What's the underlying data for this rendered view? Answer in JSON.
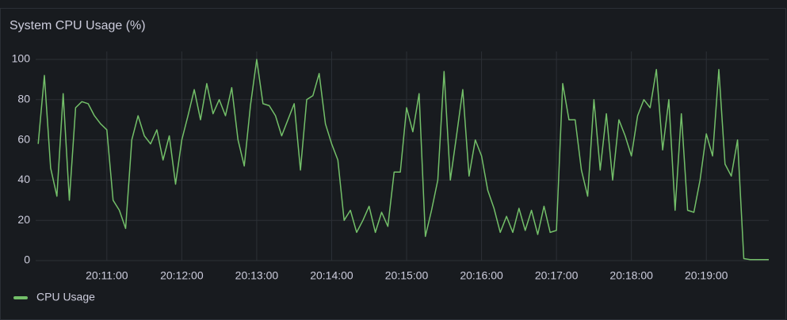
{
  "chart_data": {
    "type": "line",
    "title": "System CPU Usage (%)",
    "x": [
      "20:10:05",
      "20:10:10",
      "20:10:15",
      "20:10:20",
      "20:10:25",
      "20:10:30",
      "20:10:35",
      "20:10:40",
      "20:10:45",
      "20:10:50",
      "20:10:55",
      "20:11:00",
      "20:11:05",
      "20:11:10",
      "20:11:15",
      "20:11:20",
      "20:11:25",
      "20:11:30",
      "20:11:35",
      "20:11:40",
      "20:11:45",
      "20:11:50",
      "20:11:55",
      "20:12:00",
      "20:12:05",
      "20:12:10",
      "20:12:15",
      "20:12:20",
      "20:12:25",
      "20:12:30",
      "20:12:35",
      "20:12:40",
      "20:12:45",
      "20:12:50",
      "20:12:55",
      "20:13:00",
      "20:13:05",
      "20:13:10",
      "20:13:15",
      "20:13:20",
      "20:13:25",
      "20:13:30",
      "20:13:35",
      "20:13:40",
      "20:13:45",
      "20:13:50",
      "20:13:55",
      "20:14:00",
      "20:14:05",
      "20:14:10",
      "20:14:15",
      "20:14:20",
      "20:14:25",
      "20:14:30",
      "20:14:35",
      "20:14:40",
      "20:14:45",
      "20:14:50",
      "20:14:55",
      "20:15:00",
      "20:15:05",
      "20:15:10",
      "20:15:15",
      "20:15:20",
      "20:15:25",
      "20:15:30",
      "20:15:35",
      "20:15:40",
      "20:15:45",
      "20:15:50",
      "20:15:55",
      "20:16:00",
      "20:16:05",
      "20:16:10",
      "20:16:15",
      "20:16:20",
      "20:16:25",
      "20:16:30",
      "20:16:35",
      "20:16:40",
      "20:16:45",
      "20:16:50",
      "20:16:55",
      "20:17:00",
      "20:17:05",
      "20:17:10",
      "20:17:15",
      "20:17:20",
      "20:17:25",
      "20:17:30",
      "20:17:35",
      "20:17:40",
      "20:17:45",
      "20:17:50",
      "20:17:55",
      "20:18:00",
      "20:18:05",
      "20:18:10",
      "20:18:15",
      "20:18:20",
      "20:18:25",
      "20:18:30",
      "20:18:35",
      "20:18:40",
      "20:18:45",
      "20:18:50",
      "20:18:55",
      "20:19:00",
      "20:19:05",
      "20:19:10",
      "20:19:15",
      "20:19:20",
      "20:19:25",
      "20:19:30",
      "20:19:35",
      "20:19:40",
      "20:19:45",
      "20:19:50"
    ],
    "series": [
      {
        "name": "CPU Usage",
        "color": "#73bf69",
        "values": [
          58,
          92,
          46,
          32,
          83,
          30,
          76,
          79,
          78,
          72,
          68,
          65,
          30,
          25,
          16,
          60,
          72,
          62,
          58,
          65,
          50,
          62,
          38,
          60,
          72,
          85,
          70,
          88,
          73,
          80,
          72,
          86,
          60,
          47,
          77,
          100,
          78,
          77,
          72,
          62,
          70,
          78,
          45,
          80,
          82,
          93,
          68,
          58,
          50,
          20,
          25,
          14,
          20,
          27,
          14,
          24,
          17,
          44,
          44,
          76,
          64,
          83,
          12,
          25,
          40,
          94,
          40,
          62,
          85,
          42,
          60,
          52,
          35,
          26,
          14,
          22,
          14,
          26,
          15,
          25,
          13,
          27,
          14,
          15,
          88,
          70,
          70,
          45,
          32,
          80,
          45,
          73,
          40,
          70,
          62,
          52,
          72,
          80,
          76,
          95,
          55,
          80,
          25,
          73,
          25,
          24,
          40,
          63,
          52,
          95,
          48,
          42,
          60,
          1,
          0.5,
          0.5,
          0.5,
          0.5
        ]
      }
    ],
    "xlim": [
      "20:10:03",
      "20:19:50"
    ],
    "xticks": [
      "20:11:00",
      "20:12:00",
      "20:13:00",
      "20:14:00",
      "20:15:00",
      "20:16:00",
      "20:17:00",
      "20:18:00",
      "20:19:00"
    ],
    "ylim": [
      0,
      100
    ],
    "yticks": [
      0,
      20,
      40,
      60,
      80,
      100
    ],
    "grid": true,
    "legend": "bottom-left"
  }
}
